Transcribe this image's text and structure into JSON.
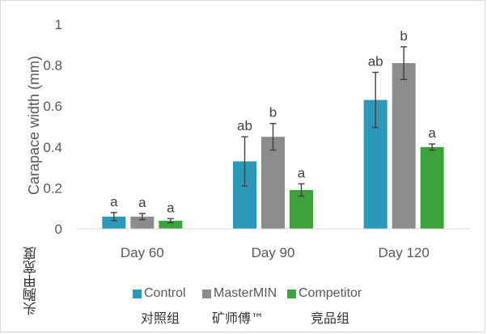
{
  "chart_data": {
    "type": "bar",
    "ylabel": "Carapace width (mm)",
    "ylabel_cn": "头胸甲宽度",
    "ylim": [
      0,
      1
    ],
    "yticks": [
      "0",
      "0.2",
      "0.4",
      "0.6",
      "0.8",
      "1"
    ],
    "categories": [
      "Day 60",
      "Day 90",
      "Day 120"
    ],
    "series": [
      {
        "name": "Control",
        "name_cn": "对照组",
        "color": "#2d99b8",
        "values": [
          0.06,
          0.33,
          0.63
        ],
        "errors": [
          0.02,
          0.12,
          0.135
        ],
        "letters": [
          "a",
          "ab",
          "ab"
        ]
      },
      {
        "name": "MasterMIN",
        "name_cn": "矿师傅™",
        "color": "#8c8c8c",
        "values": [
          0.06,
          0.45,
          0.81
        ],
        "errors": [
          0.015,
          0.065,
          0.08
        ],
        "letters": [
          "a",
          "b",
          "b"
        ]
      },
      {
        "name": "Competitor",
        "name_cn": "竞品组",
        "color": "#3ea23b",
        "values": [
          0.04,
          0.19,
          0.4
        ],
        "errors": [
          0.01,
          0.03,
          0.015
        ],
        "letters": [
          "a",
          "a",
          "a"
        ]
      }
    ],
    "grid": false,
    "legend_position": "bottom"
  }
}
